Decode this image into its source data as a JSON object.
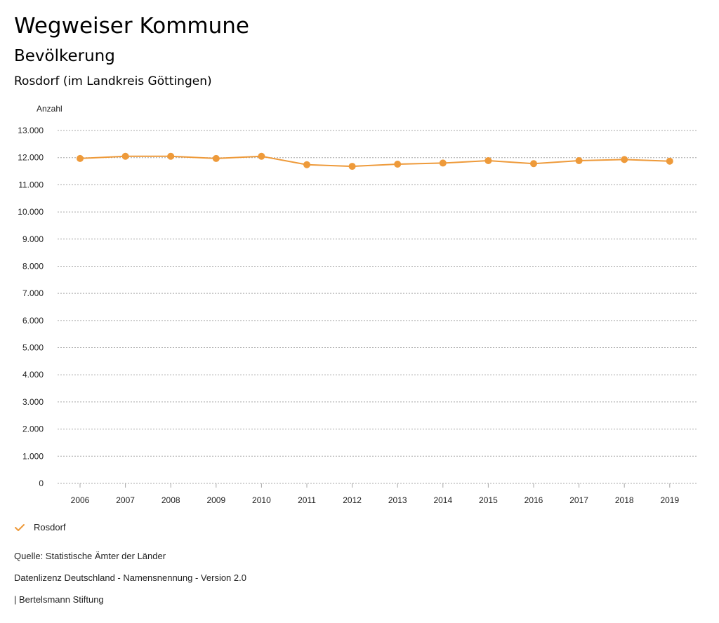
{
  "header": {
    "site_title": "Wegweiser Kommune",
    "section_title": "Bevölkerung",
    "chart_heading": "Rosdorf (im Landkreis Göttingen)"
  },
  "colors": {
    "series": "#EE9A3A",
    "grid": "#A8A8A8",
    "text": "#222222"
  },
  "legend": {
    "items": [
      {
        "label": "Rosdorf",
        "icon": "checkmark-icon"
      }
    ]
  },
  "footer": {
    "source": "Quelle: Statistische Ämter der Länder",
    "license": "Datenlizenz Deutschland - Namensnennung - Version 2.0",
    "publisher": "| Bertelsmann Stiftung"
  },
  "chart_data": {
    "type": "line",
    "title": "Rosdorf (im Landkreis Göttingen)",
    "xlabel": "",
    "ylabel": "Anzahl",
    "ylim": [
      0,
      13000
    ],
    "yticks": [
      0,
      1000,
      2000,
      3000,
      4000,
      5000,
      6000,
      7000,
      8000,
      9000,
      10000,
      11000,
      12000,
      13000
    ],
    "ytick_labels": [
      "0",
      "1.000",
      "2.000",
      "3.000",
      "4.000",
      "5.000",
      "6.000",
      "7.000",
      "8.000",
      "9.000",
      "10.000",
      "11.000",
      "12.000",
      "13.000"
    ],
    "categories": [
      "2006",
      "2007",
      "2008",
      "2009",
      "2010",
      "2011",
      "2012",
      "2013",
      "2014",
      "2015",
      "2016",
      "2017",
      "2018",
      "2019"
    ],
    "grid": true,
    "legend_position": "bottom-left",
    "series": [
      {
        "name": "Rosdorf",
        "values": [
          11970,
          12050,
          12050,
          11970,
          12050,
          11740,
          11680,
          11760,
          11800,
          11890,
          11780,
          11890,
          11930,
          11870
        ]
      }
    ]
  }
}
